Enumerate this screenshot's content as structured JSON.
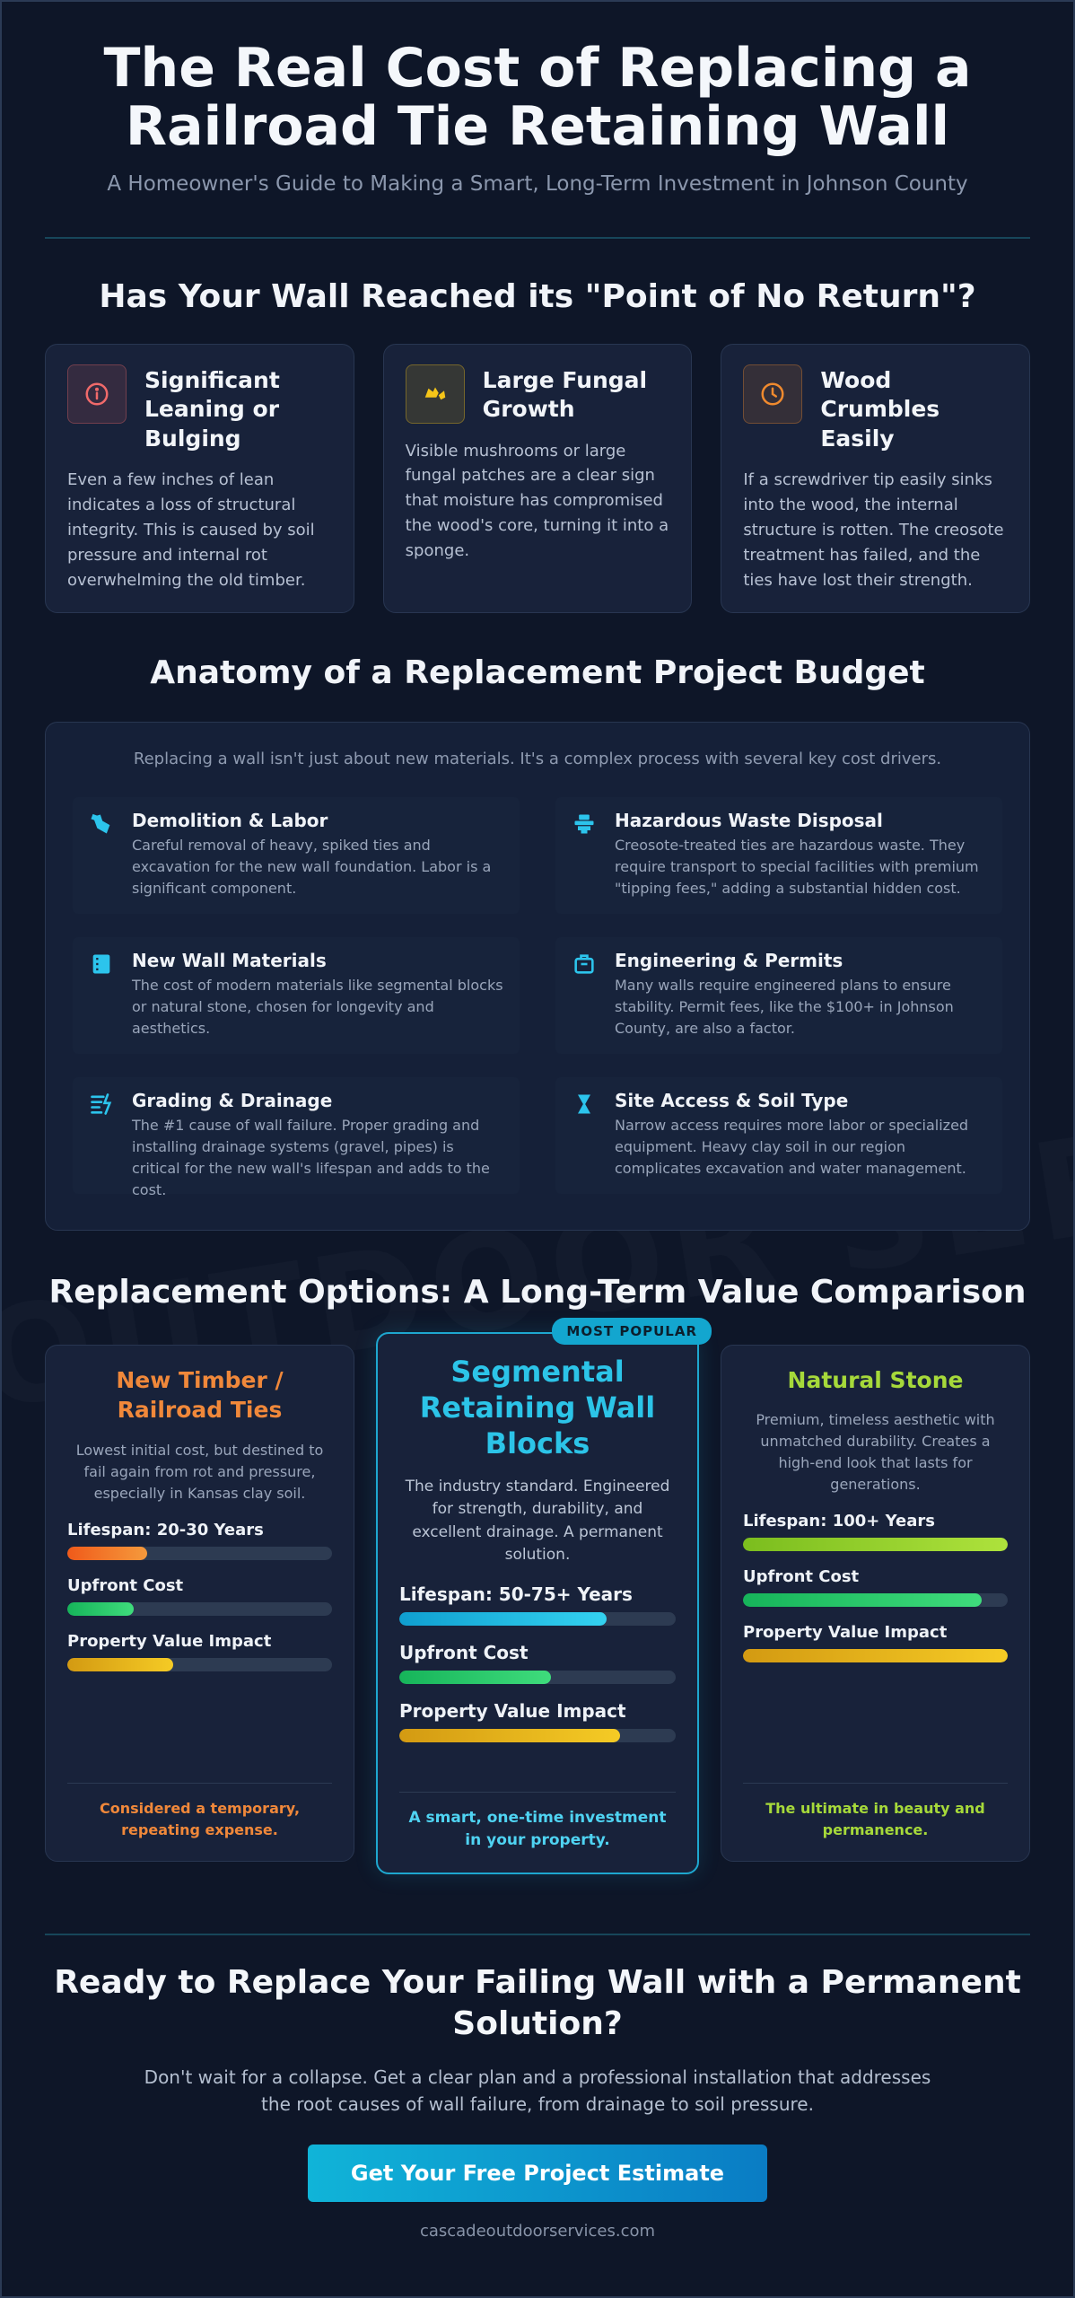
{
  "hero": {
    "title_line1": "The Real Cost of Replacing a",
    "title_line2": "Railroad Tie Retaining Wall",
    "subtitle": "A Homeowner's Guide to Making a Smart, Long-Term Investment in Johnson County"
  },
  "watermark": "OUTDOOR SER",
  "signs": {
    "title": "Has Your Wall Reached its \"Point of No Return\"?",
    "cards": [
      {
        "icon": "info-circle-icon",
        "color": "#f06a6a",
        "title": "Significant Leaning or Bulging",
        "text": "Even a few inches of lean indicates a loss of structural integrity. This is caused by soil pressure and internal rot overwhelming the old timber."
      },
      {
        "icon": "fungus-icon",
        "color": "#f5c518",
        "title": "Large Fungal Growth",
        "text": "Visible mushrooms or large fungal patches are a clear sign that moisture has compromised the wood's core, turning it into a sponge."
      },
      {
        "icon": "clock-icon",
        "color": "#f08a2e",
        "title": "Wood Crumbles Easily",
        "text": "If a screwdriver tip easily sinks into the wood, the internal structure is rotten. The creosote treatment has failed, and the ties have lost their strength."
      }
    ]
  },
  "budget": {
    "title": "Anatomy of a Replacement Project Budget",
    "intro": "Replacing a wall isn't just about new materials. It's a complex process with several key cost drivers.",
    "items": [
      {
        "icon": "demolition-icon",
        "title": "Demolition & Labor",
        "text": "Careful removal of heavy, spiked ties and excavation for the new wall foundation. Labor is a significant component."
      },
      {
        "icon": "waste-disposal-icon",
        "title": "Hazardous Waste Disposal",
        "text": "Creosote-treated ties are hazardous waste. They require transport to special facilities with premium \"tipping fees,\" adding a substantial hidden cost."
      },
      {
        "icon": "materials-icon",
        "title": "New Wall Materials",
        "text": "The cost of modern materials like segmental blocks or natural stone, chosen for longevity and aesthetics."
      },
      {
        "icon": "permit-icon",
        "title": "Engineering & Permits",
        "text": "Many walls require engineered plans to ensure stability. Permit fees, like the $100+ in Johnson County, are also a factor."
      },
      {
        "icon": "drainage-icon",
        "title": "Grading & Drainage",
        "text": "The #1 cause of wall failure. Proper grading and installing drainage systems (gravel, pipes) is critical for the new wall's lifespan and adds to the cost."
      },
      {
        "icon": "hourglass-icon",
        "title": "Site Access & Soil Type",
        "text": "Narrow access requires more labor or specialized equipment. Heavy clay soil in our region complicates excavation and water management."
      }
    ]
  },
  "options": {
    "title": "Replacement Options: A Long-Term Value Comparison",
    "badge": "MOST POPULAR",
    "cards": [
      {
        "title": "New Timber / Railroad Ties",
        "title_color": "#f0883a",
        "desc": "Lowest initial cost, but destined to fail again from rot and pressure, especially in Kansas clay soil.",
        "metrics": [
          {
            "label": "Lifespan: 20-30 Years",
            "level": 0.3,
            "colors": [
              "#f05a1a",
              "#f59a3c"
            ]
          },
          {
            "label": "Upfront Cost",
            "level": 0.25,
            "colors": [
              "#16b45a",
              "#3fdc7c"
            ]
          },
          {
            "label": "Property Value Impact",
            "level": 0.4,
            "colors": [
              "#d39a12",
              "#f5cb25"
            ]
          }
        ],
        "footer": "Considered a temporary, repeating expense.",
        "footer_color": "#f0883a"
      },
      {
        "title": "Segmental Retaining Wall Blocks",
        "title_color": "#2cc4e8",
        "desc": "The industry standard. Engineered for strength, durability, and excellent drainage. A permanent solution.",
        "metrics": [
          {
            "label": "Lifespan: 50-75+ Years",
            "level": 0.75,
            "colors": [
              "#0f9fd0",
              "#34d2f0"
            ]
          },
          {
            "label": "Upfront Cost",
            "level": 0.55,
            "colors": [
              "#16b45a",
              "#3fdc7c"
            ]
          },
          {
            "label": "Property Value Impact",
            "level": 0.8,
            "colors": [
              "#d39a12",
              "#f5cb25"
            ]
          }
        ],
        "footer": "A smart, one-time investment in your property.",
        "footer_color": "#4fd3f2"
      },
      {
        "title": "Natural Stone",
        "title_color": "#a6d93a",
        "desc": "Premium, timeless aesthetic with unmatched durability. Creates a high-end look that lasts for generations.",
        "metrics": [
          {
            "label": "Lifespan: 100+ Years",
            "level": 1.0,
            "colors": [
              "#7bbd1e",
              "#aee23c"
            ]
          },
          {
            "label": "Upfront Cost",
            "level": 0.9,
            "colors": [
              "#16b45a",
              "#3fdc7c"
            ]
          },
          {
            "label": "Property Value Impact",
            "level": 1.0,
            "colors": [
              "#d39a12",
              "#f5cb25"
            ]
          }
        ],
        "footer": "The ultimate in beauty and permanence.",
        "footer_color": "#a6d93a"
      }
    ]
  },
  "cta": {
    "title": "Ready to Replace Your Failing Wall with a Permanent Solution?",
    "text": "Don't wait for a collapse. Get a clear plan and a professional installation that addresses the root causes of wall failure, from drainage to soil pressure.",
    "button": "Get Your Free Project Estimate",
    "site": "cascadeoutdoorservices.com"
  }
}
